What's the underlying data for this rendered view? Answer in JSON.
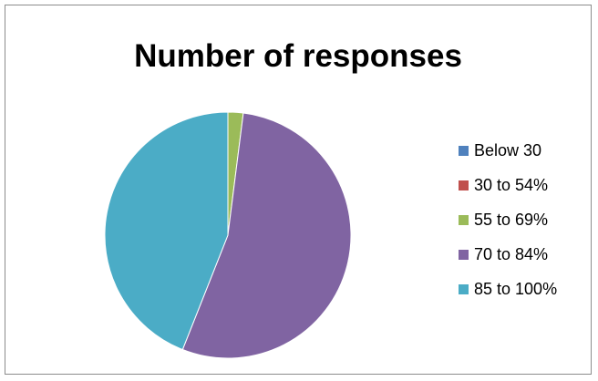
{
  "chart_data": {
    "type": "pie",
    "title": "Number of responses",
    "categories": [
      "Below 30",
      "30 to 54%",
      "55 to 69%",
      "70 to 84%",
      "85 to 100%"
    ],
    "values": [
      0,
      0,
      2,
      54,
      44
    ],
    "colors": [
      "#4f81bd",
      "#c0504d",
      "#9bbb59",
      "#8064a2",
      "#4bacc6"
    ],
    "legend_position": "right"
  }
}
